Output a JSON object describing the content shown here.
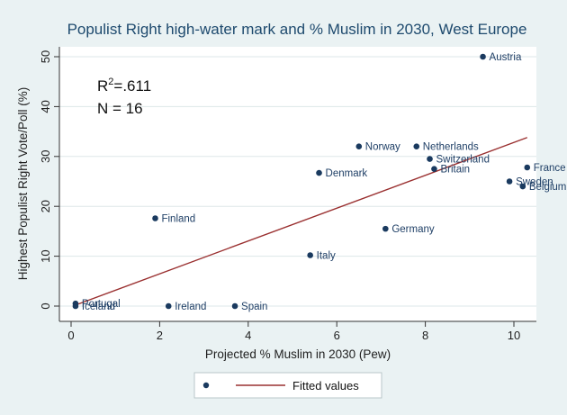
{
  "chart_data": {
    "type": "scatter",
    "title": "Populist Right high-water mark and % Muslim in 2030, West Europe",
    "xlabel": "Projected % Muslim in 2030 (Pew)",
    "ylabel": "Highest Populist Right Vote/Poll (%)",
    "xlim": [
      0,
      10.5
    ],
    "ylim": [
      -1,
      51
    ],
    "xticks": [
      0,
      2,
      4,
      6,
      8,
      10
    ],
    "yticks": [
      0,
      10,
      20,
      30,
      40,
      50
    ],
    "points": [
      {
        "label": "Austria",
        "x": 9.3,
        "y": 50
      },
      {
        "label": "Norway",
        "x": 6.5,
        "y": 32
      },
      {
        "label": "Netherlands",
        "x": 7.8,
        "y": 32
      },
      {
        "label": "Switzerland",
        "x": 8.1,
        "y": 29.5
      },
      {
        "label": "Britain",
        "x": 8.2,
        "y": 27.5
      },
      {
        "label": "Denmark",
        "x": 5.6,
        "y": 26.7
      },
      {
        "label": "France",
        "x": 10.3,
        "y": 27.8
      },
      {
        "label": "Sweden",
        "x": 9.9,
        "y": 25
      },
      {
        "label": "Belgium",
        "x": 10.2,
        "y": 24
      },
      {
        "label": "Finland",
        "x": 1.9,
        "y": 17.6
      },
      {
        "label": "Germany",
        "x": 7.1,
        "y": 15.5
      },
      {
        "label": "Italy",
        "x": 5.4,
        "y": 10.2
      },
      {
        "label": "Portugal",
        "x": 0.1,
        "y": 0.5
      },
      {
        "label": "Iceland",
        "x": 0.1,
        "y": 0
      },
      {
        "label": "Ireland",
        "x": 2.2,
        "y": 0
      },
      {
        "label": "Spain",
        "x": 3.7,
        "y": 0
      }
    ],
    "fitted_line": {
      "name": "Fitted values",
      "x": [
        0.1,
        10.3
      ],
      "y": [
        0.2,
        33.8
      ]
    },
    "annotations": {
      "r2_base": "R",
      "r2_sup": "2",
      "r2_value": "=.611",
      "n_text": "N = 16"
    },
    "legend": {
      "position": "bottom",
      "marker_entry": "",
      "line_entry": "Fitted values"
    },
    "colors": {
      "marker": "#1a3a5f",
      "line": "#9a3030",
      "label": "#1f3f66",
      "background": "#eaf2f3",
      "plot_bg": "#ffffff"
    }
  }
}
